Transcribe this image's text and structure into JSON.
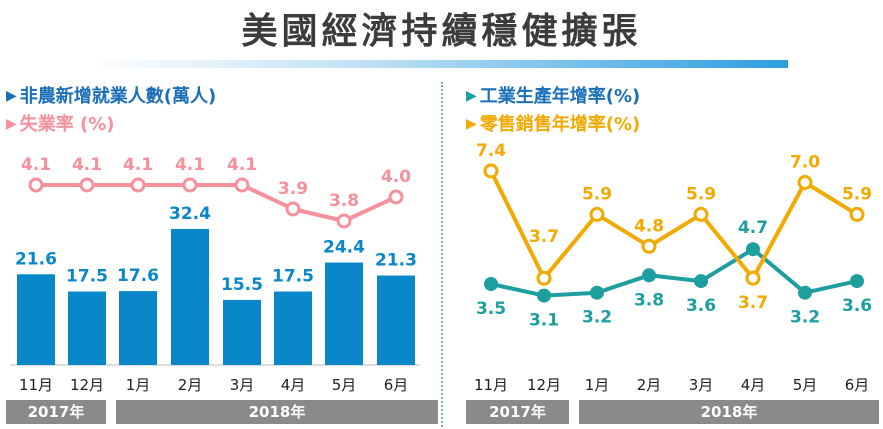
{
  "title": "美國經濟持續穩健擴張",
  "colors": {
    "bar": "#0a87c9",
    "unemployment": "#f4919c",
    "industrial": "#1e9f9f",
    "retail": "#f2a900",
    "legend_nonfarm": "#1a6fb8",
    "year_bar": "#8a8a8a"
  },
  "left": {
    "legend": [
      {
        "label": "非農新增就業人數(萬人)",
        "color": "#1a6fb8"
      },
      {
        "label": "失業率 (%)",
        "color": "#f4919c"
      }
    ],
    "years": [
      "2017年",
      "2018年"
    ]
  },
  "right": {
    "legend": [
      {
        "label": "工業生產年增率(%)",
        "color": "#1e9f9f"
      },
      {
        "label": "零售銷售年增率(%)",
        "color": "#f2a900"
      }
    ],
    "years": [
      "2017年",
      "2018年"
    ]
  },
  "chart_data": [
    {
      "type": "bar",
      "categories": [
        "11月",
        "12月",
        "1月",
        "2月",
        "3月",
        "4月",
        "5月",
        "6月"
      ],
      "series": [
        {
          "name": "非農新增就業人數(萬人)",
          "type": "bar",
          "values": [
            21.6,
            17.5,
            17.6,
            32.4,
            15.5,
            17.5,
            24.4,
            21.3
          ]
        },
        {
          "name": "失業率 (%)",
          "type": "line",
          "values": [
            4.1,
            4.1,
            4.1,
            4.1,
            4.1,
            3.9,
            3.8,
            4.0
          ]
        }
      ],
      "title": "",
      "xlabel": "",
      "ylabel": ""
    },
    {
      "type": "line",
      "categories": [
        "11月",
        "12月",
        "1月",
        "2月",
        "3月",
        "4月",
        "5月",
        "6月"
      ],
      "series": [
        {
          "name": "工業生產年增率(%)",
          "values": [
            3.5,
            3.1,
            3.2,
            3.8,
            3.6,
            4.7,
            3.2,
            3.6
          ]
        },
        {
          "name": "零售銷售年增率(%)",
          "values": [
            7.4,
            3.7,
            5.9,
            4.8,
            5.9,
            3.7,
            7.0,
            5.9
          ]
        }
      ],
      "title": "",
      "xlabel": "",
      "ylabel": ""
    }
  ]
}
